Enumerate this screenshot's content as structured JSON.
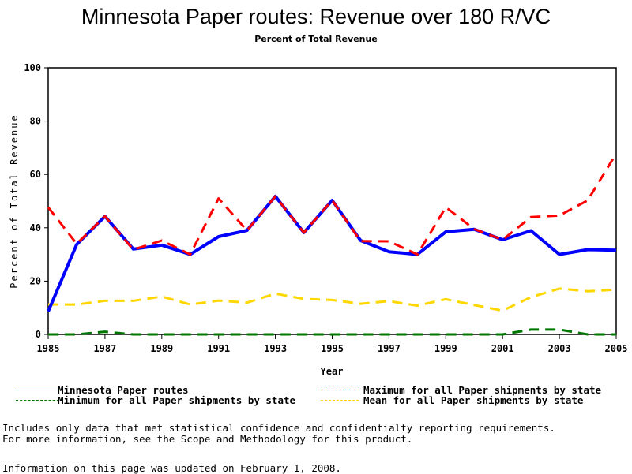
{
  "title": "Minnesota Paper routes: Revenue over 180 R/VC",
  "subtitle": "Percent of Total Revenue",
  "chart_data": {
    "type": "line",
    "title": "Minnesota Paper routes: Revenue over 180 R/VC",
    "subtitle": "Percent of Total Revenue",
    "xlabel": "Year",
    "ylabel": "Percent of Total Revenue",
    "xlim": [
      1985,
      2005
    ],
    "ylim": [
      0,
      100
    ],
    "x_ticks": [
      "1985",
      "1987",
      "1989",
      "1991",
      "1993",
      "1995",
      "1997",
      "1999",
      "2001",
      "2003",
      "2005"
    ],
    "y_ticks": [
      "0",
      "20",
      "40",
      "60",
      "80",
      "100"
    ],
    "grid": false,
    "legend_position": "bottom",
    "x": [
      1985,
      1986,
      1987,
      1988,
      1989,
      1990,
      1991,
      1992,
      1993,
      1994,
      1995,
      1996,
      1997,
      1998,
      1999,
      2000,
      2001,
      2002,
      2003,
      2004,
      2005
    ],
    "series": [
      {
        "name": "Minnesota Paper routes",
        "color": "#0000ff",
        "style": "solid",
        "values": [
          8.6,
          33.7,
          44.3,
          32.0,
          33.5,
          30.0,
          36.7,
          39.0,
          51.8,
          38.2,
          50.3,
          35.2,
          31.0,
          30.0,
          38.5,
          39.4,
          35.5,
          38.9,
          30.0,
          31.8,
          31.6
        ]
      },
      {
        "name": "Maximum for all Paper shipments by state",
        "color": "#ff0000",
        "style": "dashed",
        "values": [
          47.7,
          34.0,
          44.3,
          31.8,
          35.2,
          30.0,
          51.0,
          39.0,
          51.8,
          38.2,
          50.3,
          35.0,
          34.9,
          30.0,
          47.7,
          39.5,
          35.5,
          44.0,
          44.6,
          50.3,
          67.8
        ]
      },
      {
        "name": "Minimum for all Paper shipments by state",
        "color": "#007700",
        "style": "dashed",
        "values": [
          0,
          0,
          1.0,
          0,
          0,
          0,
          0,
          0,
          0,
          0,
          0,
          0,
          0,
          0,
          0,
          0,
          0,
          1.8,
          1.8,
          0,
          0
        ]
      },
      {
        "name": "Mean for all Paper shipments by state",
        "color": "#ffd700",
        "style": "dashed",
        "values": [
          11.2,
          11.2,
          12.6,
          12.6,
          14.2,
          11.2,
          12.7,
          11.9,
          15.3,
          13.3,
          12.9,
          11.5,
          12.5,
          10.8,
          13.2,
          11.0,
          8.9,
          14.0,
          17.2,
          16.2,
          16.8
        ]
      }
    ]
  },
  "legend": [
    {
      "label": "Minnesota Paper routes",
      "color": "#0000ff",
      "style": "solid"
    },
    {
      "label": "Minimum for all Paper shipments by state",
      "color": "#007700",
      "style": "dashed"
    },
    {
      "label": "Maximum for all Paper shipments by state",
      "color": "#ff0000",
      "style": "dashed"
    },
    {
      "label": "Mean for all Paper shipments by state",
      "color": "#ffd700",
      "style": "dashed"
    }
  ],
  "notes": {
    "line1": "Includes only data that met statistical confidence and confidentialty reporting requirements.",
    "line2": "For more information, see the Scope and Methodology for this product.",
    "updated": "Information on this page was updated on February 1, 2008."
  }
}
